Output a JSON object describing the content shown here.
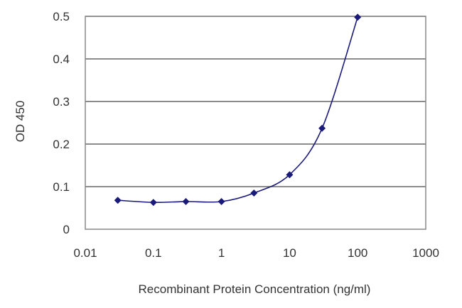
{
  "chart_data": {
    "type": "line",
    "x_scale": "log",
    "xlabel": "Recombinant Protein Concentration (ng/ml)",
    "ylabel": "OD 450",
    "xlim": [
      0.01,
      1000
    ],
    "ylim": [
      0,
      0.5
    ],
    "x_ticks": [
      0.01,
      0.1,
      1,
      10,
      100,
      1000
    ],
    "x_tick_labels": [
      "0.01",
      "0.1",
      "1",
      "10",
      "100",
      "1000"
    ],
    "y_ticks": [
      0,
      0.1,
      0.2,
      0.3,
      0.4,
      0.5
    ],
    "y_tick_labels": [
      "0",
      "0.1",
      "0.2",
      "0.3",
      "0.4",
      "0.5"
    ],
    "grid": "horizontal",
    "legend": "none",
    "series": [
      {
        "x": [
          0.03,
          0.1,
          0.3,
          1,
          3,
          10,
          30,
          100
        ],
        "y": [
          0.068,
          0.063,
          0.065,
          0.065,
          0.085,
          0.128,
          0.237,
          0.498
        ],
        "marker": "diamond",
        "smooth": true
      }
    ],
    "colors": {
      "series": "#1a1a7a",
      "grid": "#666666",
      "frame": "#888888",
      "text": "#333333"
    }
  }
}
